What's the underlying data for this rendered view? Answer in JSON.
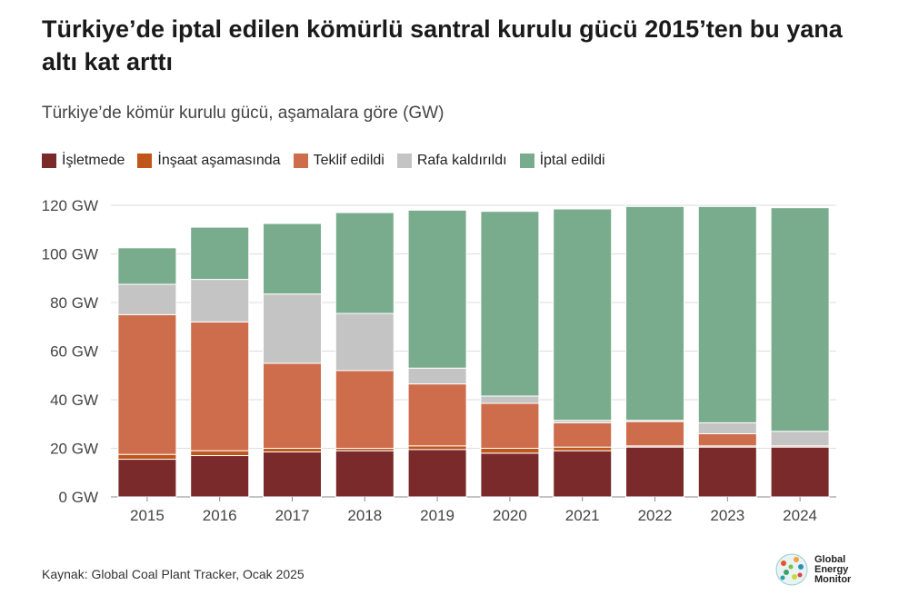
{
  "title": "Türkiye’de iptal edilen kömürlü santral kurulu gücü 2015’ten bu yana altı kat arttı",
  "subtitle": "Türkiye’de kömür kurulu gücü, aşamalara göre (GW)",
  "source": "Kaynak: Global Coal Plant Tracker, Ocak 2025",
  "logo": {
    "line1": "Global",
    "line2": "Energy",
    "line3": "Monitor"
  },
  "colors": {
    "isletmede": "#7a2a2a",
    "insaat": "#c1561b",
    "teklif": "#cd6d4c",
    "rafa": "#c4c4c4",
    "iptal": "#78ac8c"
  },
  "chart_data": {
    "type": "bar",
    "stacked": true,
    "categories": [
      "2015",
      "2016",
      "2017",
      "2018",
      "2019",
      "2020",
      "2021",
      "2022",
      "2023",
      "2024"
    ],
    "series": [
      {
        "name": "İşletmede",
        "values": [
          15.5,
          17,
          18.5,
          19,
          19.5,
          18,
          19,
          20.5,
          20.5,
          20.5
        ]
      },
      {
        "name": "İnşaat aşamasında",
        "values": [
          2,
          2,
          1.5,
          1,
          1.5,
          2,
          1.5,
          0.5,
          0.5,
          0.5
        ]
      },
      {
        "name": "Teklif edildi",
        "values": [
          57.5,
          53,
          35,
          32,
          25.5,
          18.5,
          10,
          10,
          5,
          0
        ]
      },
      {
        "name": "Rafa kaldırıldı",
        "values": [
          12.5,
          17.5,
          28.5,
          23.5,
          6.5,
          3,
          1,
          0.5,
          4.5,
          6
        ]
      },
      {
        "name": "İptal edildi",
        "values": [
          15,
          21.5,
          29,
          41.5,
          65,
          76,
          87,
          88,
          89,
          92
        ]
      }
    ],
    "ylim": [
      0,
      120
    ],
    "yticks": [
      0,
      20,
      40,
      60,
      80,
      100,
      120
    ],
    "ytick_labels": [
      "0 GW",
      "20 GW",
      "40 GW",
      "60 GW",
      "80 GW",
      "100 GW",
      "120 GW"
    ],
    "grid": true,
    "legend": "top-left"
  }
}
